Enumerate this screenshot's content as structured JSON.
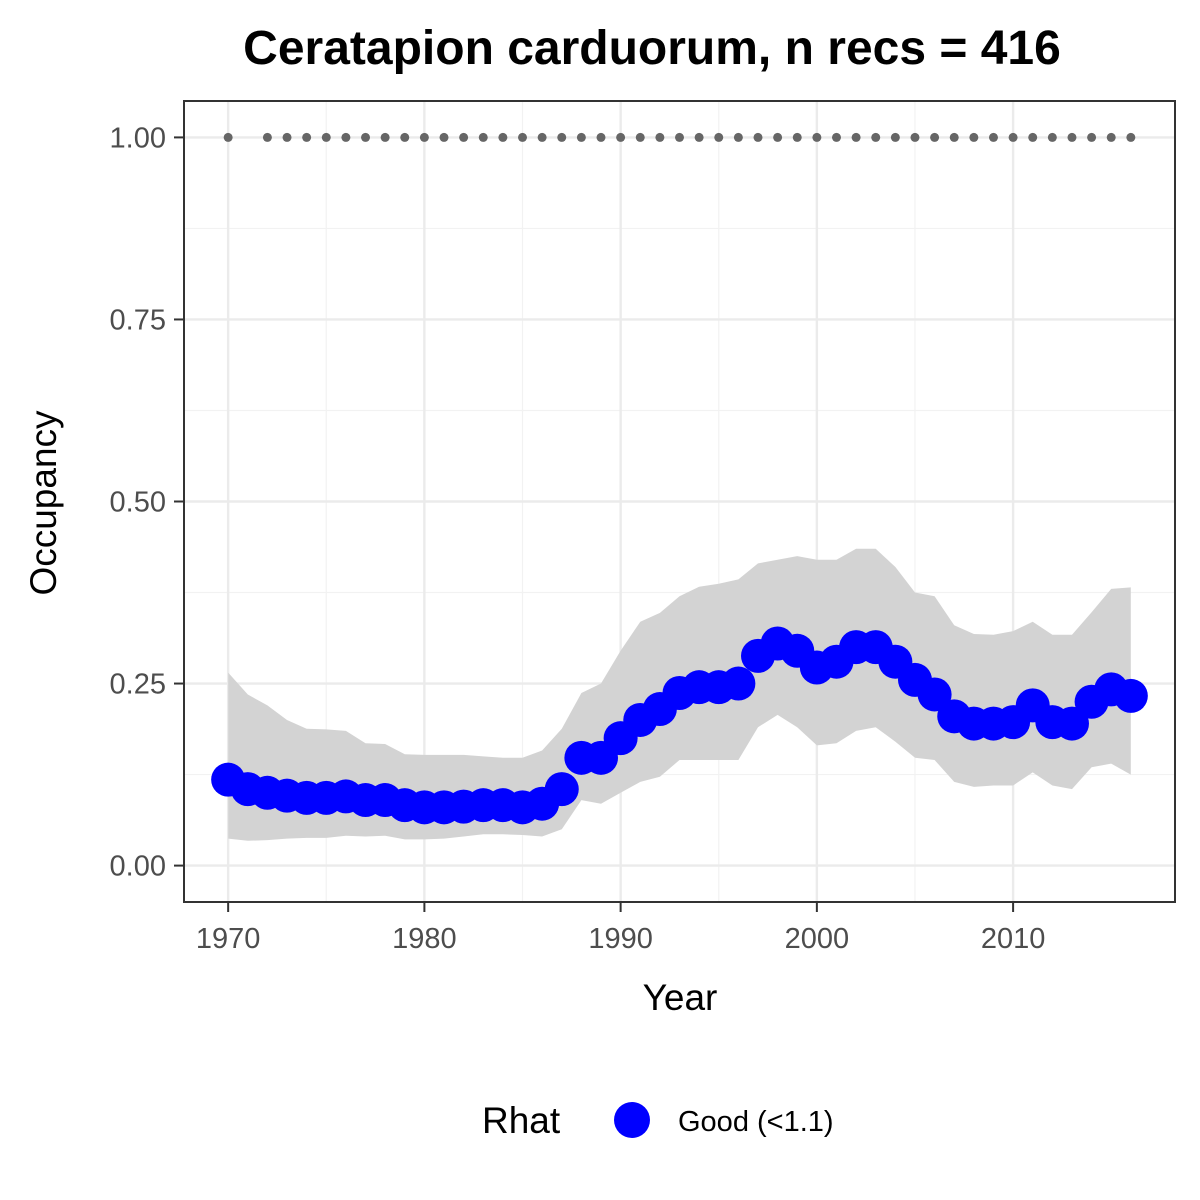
{
  "chart_data": {
    "type": "line",
    "title": "Ceratapion carduorum, n recs = 416",
    "xlabel": "Year",
    "ylabel": "Occupancy",
    "xlim": [
      1967.75,
      2018.25
    ],
    "ylim": [
      -0.05,
      1.05
    ],
    "x_ticks": [
      1970,
      1980,
      1990,
      2000,
      2010
    ],
    "x_tick_labels": [
      "1970",
      "1980",
      "1990",
      "2000",
      "2010"
    ],
    "y_ticks": [
      0,
      0.25,
      0.5,
      0.75,
      1
    ],
    "y_tick_labels": [
      "0.00",
      "0.25",
      "0.50",
      "0.75",
      "1.00"
    ],
    "grid": true,
    "legend": {
      "position": "bottom",
      "title": "Rhat",
      "entries": [
        {
          "label": "Good (<1.1)",
          "color": "#0000ff"
        }
      ]
    },
    "series": [
      {
        "name": "Good (<1.1)",
        "color": "#0000ff",
        "x": [
          1970,
          1971,
          1972,
          1973,
          1974,
          1975,
          1976,
          1977,
          1978,
          1979,
          1980,
          1981,
          1982,
          1983,
          1984,
          1985,
          1986,
          1987,
          1988,
          1989,
          1990,
          1991,
          1992,
          1993,
          1994,
          1995,
          1996,
          1997,
          1998,
          1999,
          2000,
          2001,
          2002,
          2003,
          2004,
          2005,
          2006,
          2007,
          2008,
          2009,
          2010,
          2011,
          2012,
          2013,
          2014,
          2015,
          2016
        ],
        "y": [
          0.118,
          0.105,
          0.1,
          0.096,
          0.093,
          0.093,
          0.095,
          0.09,
          0.09,
          0.083,
          0.08,
          0.08,
          0.081,
          0.083,
          0.083,
          0.08,
          0.085,
          0.105,
          0.148,
          0.148,
          0.175,
          0.2,
          0.215,
          0.237,
          0.245,
          0.245,
          0.25,
          0.288,
          0.305,
          0.295,
          0.272,
          0.28,
          0.3,
          0.3,
          0.28,
          0.255,
          0.235,
          0.205,
          0.195,
          0.195,
          0.197,
          0.22,
          0.197,
          0.195,
          0.225,
          0.242,
          0.233
        ],
        "lower": [
          0.037,
          0.034,
          0.035,
          0.037,
          0.038,
          0.038,
          0.041,
          0.04,
          0.041,
          0.036,
          0.036,
          0.037,
          0.04,
          0.043,
          0.043,
          0.042,
          0.04,
          0.05,
          0.09,
          0.085,
          0.1,
          0.115,
          0.122,
          0.145,
          0.145,
          0.145,
          0.145,
          0.19,
          0.207,
          0.19,
          0.165,
          0.168,
          0.185,
          0.19,
          0.17,
          0.148,
          0.145,
          0.115,
          0.108,
          0.11,
          0.11,
          0.128,
          0.11,
          0.105,
          0.135,
          0.14,
          0.125
        ],
        "upper": [
          0.265,
          0.235,
          0.22,
          0.2,
          0.188,
          0.187,
          0.185,
          0.168,
          0.167,
          0.153,
          0.152,
          0.152,
          0.152,
          0.15,
          0.148,
          0.148,
          0.158,
          0.188,
          0.237,
          0.25,
          0.295,
          0.335,
          0.347,
          0.37,
          0.383,
          0.387,
          0.393,
          0.415,
          0.42,
          0.425,
          0.42,
          0.42,
          0.435,
          0.435,
          0.41,
          0.375,
          0.37,
          0.33,
          0.318,
          0.317,
          0.322,
          0.335,
          0.317,
          0.317,
          0.348,
          0.38,
          0.382
        ]
      }
    ],
    "dotted_reference": {
      "y": 1,
      "x": [
        1970,
        1972,
        1973,
        1974,
        1975,
        1976,
        1977,
        1978,
        1979,
        1980,
        1981,
        1982,
        1983,
        1984,
        1985,
        1986,
        1987,
        1988,
        1989,
        1990,
        1991,
        1992,
        1993,
        1994,
        1995,
        1996,
        1997,
        1998,
        1999,
        2000,
        2001,
        2002,
        2003,
        2004,
        2005,
        2006,
        2007,
        2008,
        2009,
        2010,
        2011,
        2012,
        2013,
        2014,
        2015,
        2016
      ],
      "color": "#666666"
    },
    "ribbon_color": "#d3d3d3"
  }
}
